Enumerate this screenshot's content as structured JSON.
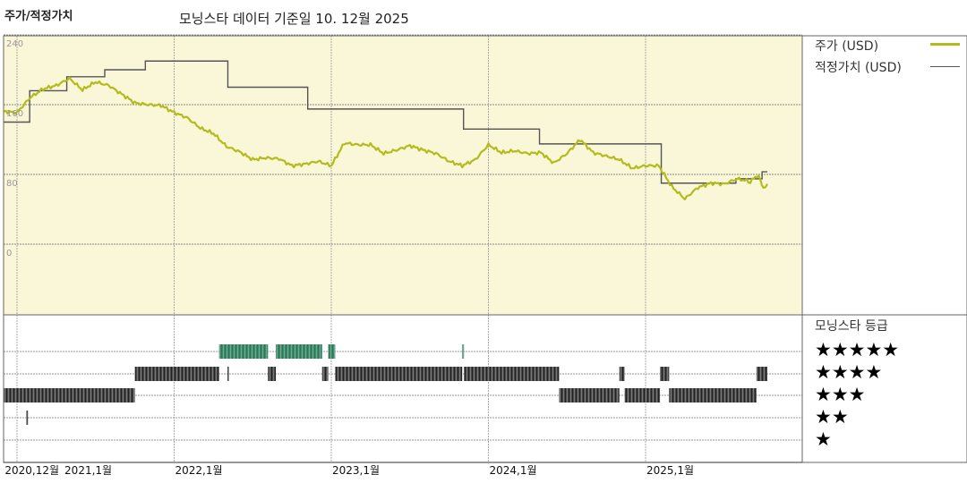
{
  "header": {
    "title": "주가/적정가치",
    "data_date": "모닝스타 데이터 기준일 10. 12월 2025"
  },
  "legend": {
    "price_label": "주가 (USD)",
    "fair_value_label": "적정가치 (USD)",
    "rating_title": "모닝스타 등급",
    "rating_rows": [
      "★★★★★",
      "★★★★",
      "★★★",
      "★★",
      "★"
    ]
  },
  "colors": {
    "plot_background": "#faf6d8",
    "price": "#b3bc1c",
    "fair_value": "#555555",
    "rating_bar": "#3c3c3c",
    "rating_bar_5star": "#3e8c6b"
  },
  "chart_data": [
    {
      "type": "line",
      "title": "",
      "ylim": [
        -80,
        240
      ],
      "yticks": [
        "240",
        "160",
        "80",
        "0"
      ],
      "ytick_values": [
        240,
        160,
        80,
        0
      ],
      "xticks": [
        "2020,12월",
        "2021,1월",
        "2022,1월",
        "2023,1월",
        "2024,1월",
        "2025,1월"
      ],
      "xtick_dates": [
        "2020-12-01",
        "2021-01-01",
        "2022-01-01",
        "2023-01-01",
        "2024-01-01",
        "2025-01-01"
      ],
      "grid": true,
      "legend": "right",
      "series": [
        {
          "name": "주가 (USD)",
          "style": "line",
          "points": [
            [
              "2020-12-01",
              152
            ],
            [
              "2021-01-01",
              151
            ],
            [
              "2021-02-01",
              168
            ],
            [
              "2021-03-01",
              178
            ],
            [
              "2021-04-01",
              182
            ],
            [
              "2021-05-01",
              190
            ],
            [
              "2021-06-01",
              177
            ],
            [
              "2021-07-01",
              186
            ],
            [
              "2021-08-01",
              182
            ],
            [
              "2021-09-01",
              172
            ],
            [
              "2021-10-01",
              162
            ],
            [
              "2021-11-01",
              160
            ],
            [
              "2021-12-01",
              159
            ],
            [
              "2022-01-01",
              151
            ],
            [
              "2022-02-01",
              145
            ],
            [
              "2022-03-01",
              133
            ],
            [
              "2022-04-01",
              127
            ],
            [
              "2022-05-01",
              112
            ],
            [
              "2022-06-01",
              106
            ],
            [
              "2022-07-01",
              97
            ],
            [
              "2022-08-01",
              99
            ],
            [
              "2022-09-01",
              98
            ],
            [
              "2022-10-01",
              90
            ],
            [
              "2022-11-01",
              92
            ],
            [
              "2022-12-01",
              95
            ],
            [
              "2023-01-01",
              90
            ],
            [
              "2023-02-01",
              116
            ],
            [
              "2023-03-01",
              114
            ],
            [
              "2023-04-01",
              114
            ],
            [
              "2023-05-01",
              104
            ],
            [
              "2023-06-01",
              108
            ],
            [
              "2023-07-01",
              113
            ],
            [
              "2023-08-01",
              108
            ],
            [
              "2023-09-01",
              104
            ],
            [
              "2023-10-01",
              95
            ],
            [
              "2023-11-01",
              90
            ],
            [
              "2023-12-01",
              97
            ],
            [
              "2024-01-01",
              114
            ],
            [
              "2024-02-01",
              105
            ],
            [
              "2024-03-01",
              107
            ],
            [
              "2024-04-01",
              104
            ],
            [
              "2024-05-01",
              105
            ],
            [
              "2024-06-01",
              93
            ],
            [
              "2024-07-01",
              104
            ],
            [
              "2024-08-01",
              120
            ],
            [
              "2024-09-01",
              105
            ],
            [
              "2024-10-01",
              101
            ],
            [
              "2024-11-01",
              97
            ],
            [
              "2024-12-01",
              87
            ],
            [
              "2025-01-01",
              90
            ],
            [
              "2025-02-01",
              90
            ],
            [
              "2025-03-01",
              66
            ],
            [
              "2025-04-01",
              52
            ],
            [
              "2025-05-01",
              65
            ],
            [
              "2025-06-01",
              70
            ],
            [
              "2025-07-01",
              69
            ],
            [
              "2025-08-01",
              75
            ],
            [
              "2025-09-01",
              72
            ],
            [
              "2025-09-20",
              80
            ],
            [
              "2025-10-01",
              63
            ],
            [
              "2025-10-10",
              69
            ]
          ]
        },
        {
          "name": "적정가치 (USD)",
          "style": "step",
          "points": [
            [
              "2020-12-01",
              140
            ],
            [
              "2021-01-30",
              176
            ],
            [
              "2021-04-25",
              192
            ],
            [
              "2021-07-22",
              200
            ],
            [
              "2021-10-25",
              210
            ],
            [
              "2022-05-04",
              180
            ],
            [
              "2022-11-07",
              155
            ],
            [
              "2023-11-04",
              132
            ],
            [
              "2024-04-28",
              115
            ],
            [
              "2025-02-07",
              70
            ],
            [
              "2025-07-28",
              75
            ],
            [
              "2025-09-28",
              83
            ],
            [
              "2025-10-10",
              83
            ]
          ]
        }
      ]
    },
    {
      "type": "timeline",
      "title": "모닝스타 등급",
      "periods": [
        {
          "start": "2020-12-01",
          "end": "2021-10-01",
          "stars": 3
        },
        {
          "start": "2021-01-22",
          "end": "2021-01-26",
          "stars": 2
        },
        {
          "start": "2021-10-01",
          "end": "2022-04-14",
          "stars": 4
        },
        {
          "start": "2022-04-14",
          "end": "2022-08-06",
          "stars": 5
        },
        {
          "start": "2022-05-03",
          "end": "2022-05-06",
          "stars": 4
        },
        {
          "start": "2022-08-06",
          "end": "2022-08-24",
          "stars": 4
        },
        {
          "start": "2022-08-24",
          "end": "2022-12-10",
          "stars": 5
        },
        {
          "start": "2022-12-10",
          "end": "2022-12-24",
          "stars": 4
        },
        {
          "start": "2022-12-24",
          "end": "2023-01-10",
          "stars": 5
        },
        {
          "start": "2023-01-10",
          "end": "2023-11-01",
          "stars": 4
        },
        {
          "start": "2023-11-01",
          "end": "2023-11-05",
          "stars": 5
        },
        {
          "start": "2023-11-05",
          "end": "2024-06-13",
          "stars": 4
        },
        {
          "start": "2024-06-13",
          "end": "2024-11-01",
          "stars": 3
        },
        {
          "start": "2024-11-01",
          "end": "2024-11-13",
          "stars": 4
        },
        {
          "start": "2024-11-13",
          "end": "2025-02-04",
          "stars": 3
        },
        {
          "start": "2025-02-04",
          "end": "2025-02-25",
          "stars": 4
        },
        {
          "start": "2025-02-25",
          "end": "2025-09-15",
          "stars": 3
        },
        {
          "start": "2025-09-15",
          "end": "2025-10-10",
          "stars": 4
        }
      ]
    }
  ]
}
